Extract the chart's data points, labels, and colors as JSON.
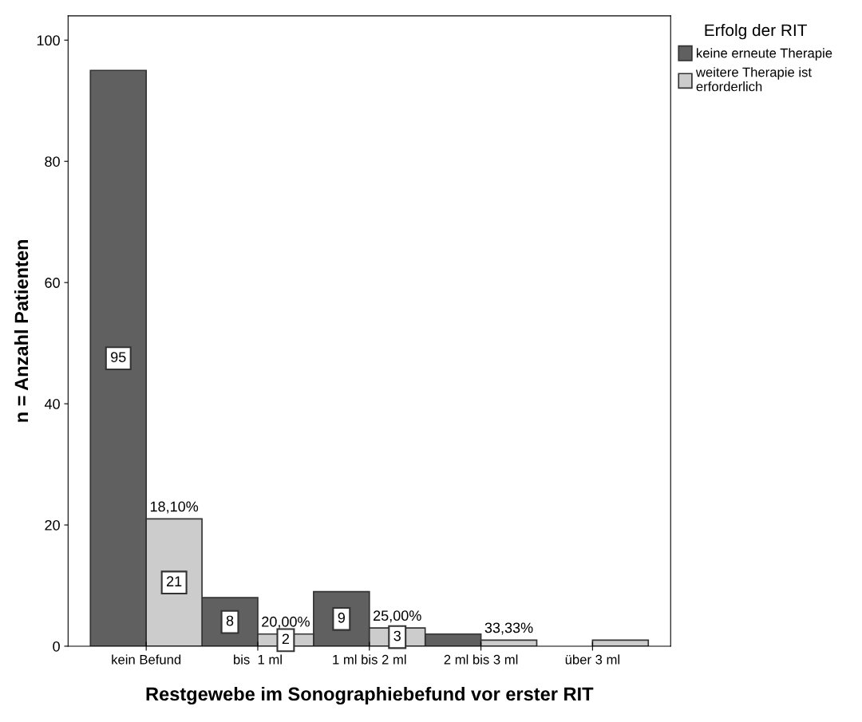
{
  "chart_data": {
    "type": "bar",
    "xlabel": "Restgewebe im Sonographiebefund vor erster RIT",
    "ylabel": "n = Anzahl Patienten",
    "legend_title": "Erfolg der RIT",
    "legend": "top right",
    "categories": [
      "kein Befund",
      "bis  1 ml",
      "1 ml bis 2 ml",
      "2 ml bis 3 ml",
      "über 3 ml"
    ],
    "series": [
      {
        "name": "keine erneute Therapie",
        "color": "#606060",
        "values": [
          95,
          8,
          9,
          2,
          null
        ],
        "value_labels": [
          "95",
          "8",
          "9",
          null,
          null
        ]
      },
      {
        "name": "weitere Therapie ist\nerforderlich",
        "color": "#cccccc",
        "values": [
          21,
          2,
          3,
          1,
          1
        ],
        "value_labels": [
          "21",
          "2",
          "3",
          null,
          null
        ]
      }
    ],
    "annotations": [
      {
        "text": "18,10%",
        "x": "kein Befund",
        "y": 21
      },
      {
        "text": "20,00%",
        "x": "bis  1 ml",
        "y": 2
      },
      {
        "text": "25,00%",
        "x": "1 ml bis 2 ml",
        "y": 3
      },
      {
        "text": "33,33%",
        "x": "2 ml bis 3 ml",
        "y": 1
      }
    ],
    "ylim": [
      0,
      104
    ],
    "yticks": [
      0,
      20,
      40,
      60,
      80,
      100
    ],
    "grid": false
  }
}
